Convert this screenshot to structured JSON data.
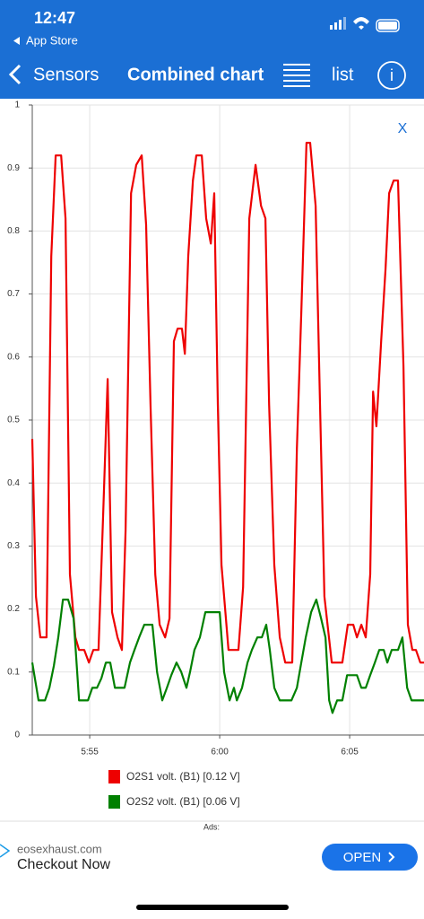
{
  "status_bar": {
    "time": "12:47",
    "back_app": "App Store"
  },
  "nav_bar": {
    "back": "Sensors",
    "title": "Combined chart",
    "list": "list"
  },
  "close": "X",
  "ad": {
    "label": "Ads:",
    "domain": "eosexhaust.com",
    "headline": "Checkout Now",
    "button": "OPEN"
  },
  "chart_data": {
    "type": "line",
    "xlim": [
      -2.21,
      12.86
    ],
    "xticks": [
      {
        "value": 0,
        "label": "5:55"
      },
      {
        "value": 5,
        "label": "6:00"
      },
      {
        "value": 10,
        "label": "6:05"
      }
    ],
    "ylim": [
      0,
      1
    ],
    "yticks": [
      0,
      0.1,
      0.2,
      0.3,
      0.4,
      0.5,
      0.6,
      0.7,
      0.8,
      0.9,
      1
    ],
    "grid": true,
    "series": [
      {
        "name": "O2S1 volt. (B1) [0.12 V]",
        "color": "#ee0000",
        "x": [
          -2.21,
          -2.07,
          -1.9,
          -1.66,
          -1.48,
          -1.31,
          -1.1,
          -0.93,
          -0.76,
          -0.55,
          -0.41,
          -0.21,
          -0.03,
          0.14,
          0.34,
          0.52,
          0.69,
          0.86,
          1.07,
          1.24,
          1.38,
          1.59,
          1.79,
          2.0,
          2.17,
          2.34,
          2.52,
          2.69,
          2.9,
          3.07,
          3.24,
          3.38,
          3.55,
          3.66,
          3.79,
          3.97,
          4.1,
          4.31,
          4.48,
          4.66,
          4.79,
          4.93,
          5.07,
          5.34,
          5.72,
          5.9,
          6.14,
          6.38,
          6.59,
          6.76,
          6.9,
          7.1,
          7.31,
          7.52,
          7.79,
          7.97,
          8.14,
          8.34,
          8.48,
          8.69,
          8.86,
          9.03,
          9.31,
          9.72,
          9.93,
          10.14,
          10.28,
          10.45,
          10.62,
          10.79,
          10.9,
          11.03,
          11.21,
          11.38,
          11.52,
          11.69,
          11.86,
          12.07,
          12.24,
          12.41,
          12.55,
          12.72,
          12.86
        ],
        "values": [
          0.47,
          0.22,
          0.155,
          0.155,
          0.76,
          0.92,
          0.92,
          0.82,
          0.255,
          0.155,
          0.135,
          0.135,
          0.115,
          0.135,
          0.135,
          0.355,
          0.565,
          0.195,
          0.155,
          0.135,
          0.325,
          0.86,
          0.905,
          0.92,
          0.81,
          0.525,
          0.255,
          0.175,
          0.155,
          0.185,
          0.625,
          0.645,
          0.645,
          0.605,
          0.76,
          0.88,
          0.92,
          0.92,
          0.82,
          0.78,
          0.86,
          0.525,
          0.27,
          0.135,
          0.135,
          0.235,
          0.82,
          0.905,
          0.84,
          0.82,
          0.525,
          0.27,
          0.155,
          0.115,
          0.115,
          0.455,
          0.67,
          0.94,
          0.94,
          0.84,
          0.525,
          0.22,
          0.115,
          0.115,
          0.175,
          0.175,
          0.155,
          0.175,
          0.155,
          0.255,
          0.545,
          0.49,
          0.625,
          0.74,
          0.86,
          0.88,
          0.88,
          0.585,
          0.175,
          0.135,
          0.135,
          0.115,
          0.115
        ]
      },
      {
        "name": "O2S2 volt. (B1) [0.06 V]",
        "color": "#008000",
        "x": [
          -2.21,
          -1.97,
          -1.72,
          -1.55,
          -1.38,
          -1.21,
          -1.03,
          -0.83,
          -0.62,
          -0.41,
          -0.07,
          0.1,
          0.28,
          0.45,
          0.62,
          0.79,
          0.97,
          1.17,
          1.34,
          1.55,
          1.72,
          1.9,
          2.1,
          2.41,
          2.59,
          2.79,
          2.97,
          3.14,
          3.34,
          3.52,
          3.72,
          3.86,
          4.03,
          4.24,
          4.45,
          5.0,
          5.17,
          5.38,
          5.55,
          5.66,
          5.86,
          6.07,
          6.24,
          6.45,
          6.62,
          6.79,
          6.93,
          7.1,
          7.31,
          7.76,
          7.97,
          8.14,
          8.31,
          8.52,
          8.72,
          8.9,
          9.07,
          9.21,
          9.34,
          9.52,
          9.72,
          9.9,
          10.28,
          10.45,
          10.62,
          10.79,
          10.97,
          11.14,
          11.31,
          11.45,
          11.62,
          11.86,
          12.03,
          12.21,
          12.38,
          12.86
        ],
        "values": [
          0.115,
          0.055,
          0.055,
          0.075,
          0.11,
          0.155,
          0.215,
          0.215,
          0.185,
          0.055,
          0.055,
          0.075,
          0.075,
          0.09,
          0.115,
          0.115,
          0.075,
          0.075,
          0.075,
          0.115,
          0.135,
          0.155,
          0.175,
          0.175,
          0.1,
          0.055,
          0.075,
          0.095,
          0.115,
          0.1,
          0.075,
          0.1,
          0.135,
          0.155,
          0.195,
          0.195,
          0.1,
          0.055,
          0.075,
          0.055,
          0.075,
          0.115,
          0.135,
          0.155,
          0.155,
          0.175,
          0.135,
          0.075,
          0.055,
          0.055,
          0.075,
          0.115,
          0.155,
          0.195,
          0.215,
          0.185,
          0.155,
          0.055,
          0.035,
          0.055,
          0.055,
          0.095,
          0.095,
          0.075,
          0.075,
          0.095,
          0.115,
          0.135,
          0.135,
          0.115,
          0.135,
          0.135,
          0.155,
          0.075,
          0.055,
          0.055
        ]
      }
    ]
  }
}
